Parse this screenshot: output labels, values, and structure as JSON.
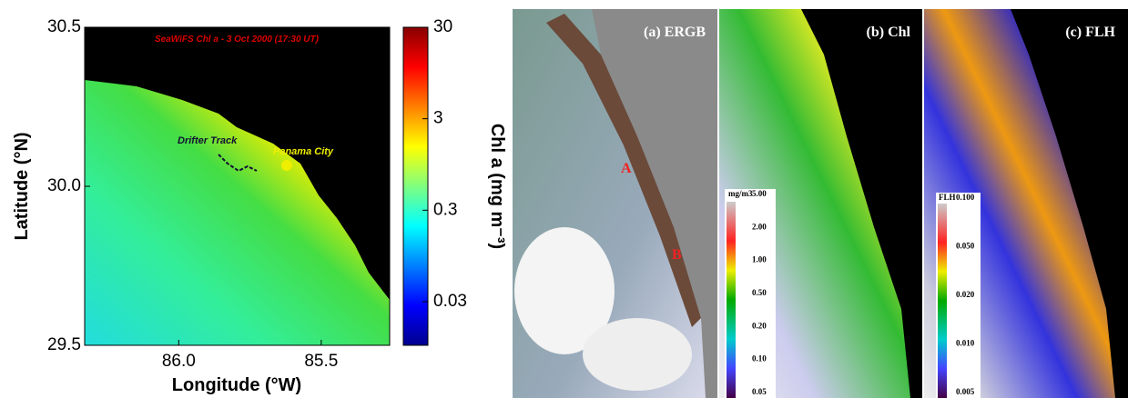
{
  "left_map": {
    "title": "SeaWiFS Chl a - 3 Oct 2000 (17:30 UT)",
    "xlabel": "Longitude (°W)",
    "ylabel": "Latitude (°N)",
    "xlim": [
      86.33,
      85.26
    ],
    "xticks": [
      {
        "value": 86,
        "label": "86.0"
      },
      {
        "value": 85.5,
        "label": "85.5"
      }
    ],
    "ylim": [
      29.5,
      30.5
    ],
    "yticks": [
      {
        "value": 29.5,
        "label": "29.5"
      },
      {
        "value": 30,
        "label": "30.0"
      },
      {
        "value": 30.5,
        "label": "30.5"
      }
    ],
    "annotations": [
      "Drifter Track",
      "Panama City"
    ],
    "colorbar": {
      "label": "Chl a (mg m⁻³)",
      "scale": "log",
      "lim": [
        0.01,
        30
      ],
      "ticks": [
        0.03,
        0.3,
        3,
        30
      ]
    }
  },
  "right_panels": [
    {
      "label": "(a) ERGB",
      "markers": [
        "A",
        "B"
      ]
    },
    {
      "label": "(b) Chl",
      "colorbar": {
        "title": "mg/m3",
        "ticks": [
          "5.00",
          "2.00",
          "1.00",
          "0.50",
          "0.20",
          "0.10",
          "0.05"
        ]
      }
    },
    {
      "label": "(c) FLH",
      "colorbar": {
        "title": "FLH",
        "ticks": [
          "0.100",
          "0.050",
          "0.020",
          "0.010",
          "0.005"
        ]
      }
    }
  ]
}
